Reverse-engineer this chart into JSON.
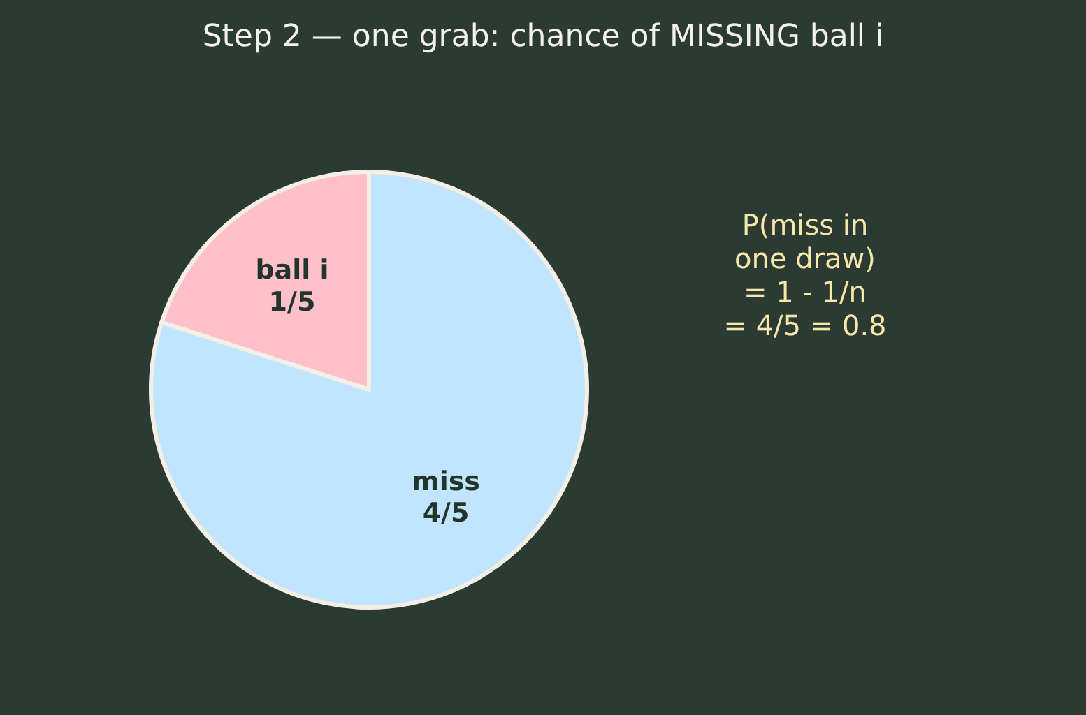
{
  "chart_data": {
    "type": "pie",
    "title": "Step 2 — one grab: chance of MISSING ball i",
    "categories": [
      "ball i",
      "miss"
    ],
    "values": [
      0.2,
      0.8
    ],
    "value_labels": [
      "1/5",
      "4/5"
    ],
    "colors": [
      "#ffc0cb",
      "#c2e5ff"
    ],
    "annotations": [
      "P(miss in\none draw)\n= 1 - 1/n\n= 4/5 = 0.8"
    ]
  }
}
